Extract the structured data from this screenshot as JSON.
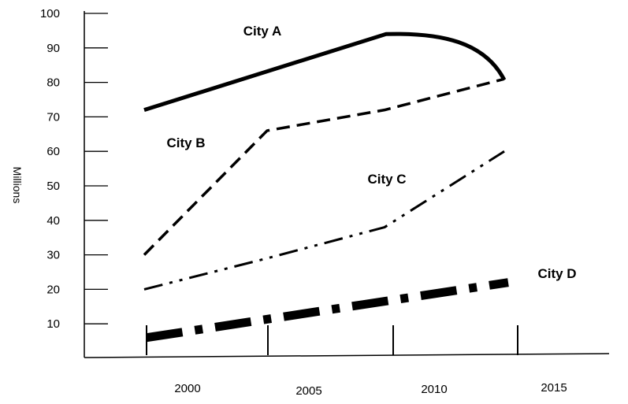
{
  "chart_data": {
    "type": "line",
    "title": "",
    "xlabel": "",
    "ylabel": "Millions",
    "ylim": [
      0,
      100
    ],
    "y_ticks": [
      "10",
      "20",
      "30",
      "40",
      "50",
      "60",
      "70",
      "80",
      "90",
      "100"
    ],
    "x_ticks": [
      "2000",
      "2005",
      "2010",
      "2015"
    ],
    "grid": false,
    "legend": "none",
    "series": [
      {
        "name": "City A",
        "style": "solid",
        "points": [
          [
            2000,
            72
          ],
          [
            2005,
            83
          ],
          [
            2010,
            94
          ],
          [
            2015,
            83
          ]
        ]
      },
      {
        "name": "City B",
        "style": "dashed",
        "points": [
          [
            2000,
            30
          ],
          [
            2005,
            66
          ],
          [
            2010,
            72
          ],
          [
            2015,
            81
          ]
        ]
      },
      {
        "name": "City C",
        "style": "dash-dot-dot",
        "points": [
          [
            2000,
            20
          ],
          [
            2005,
            29
          ],
          [
            2010,
            38
          ],
          [
            2015,
            60
          ]
        ]
      },
      {
        "name": "City D",
        "style": "thick-dash-dot",
        "points": [
          [
            2000,
            6
          ],
          [
            2005,
            11
          ],
          [
            2010,
            16
          ],
          [
            2015,
            22
          ]
        ]
      }
    ]
  }
}
